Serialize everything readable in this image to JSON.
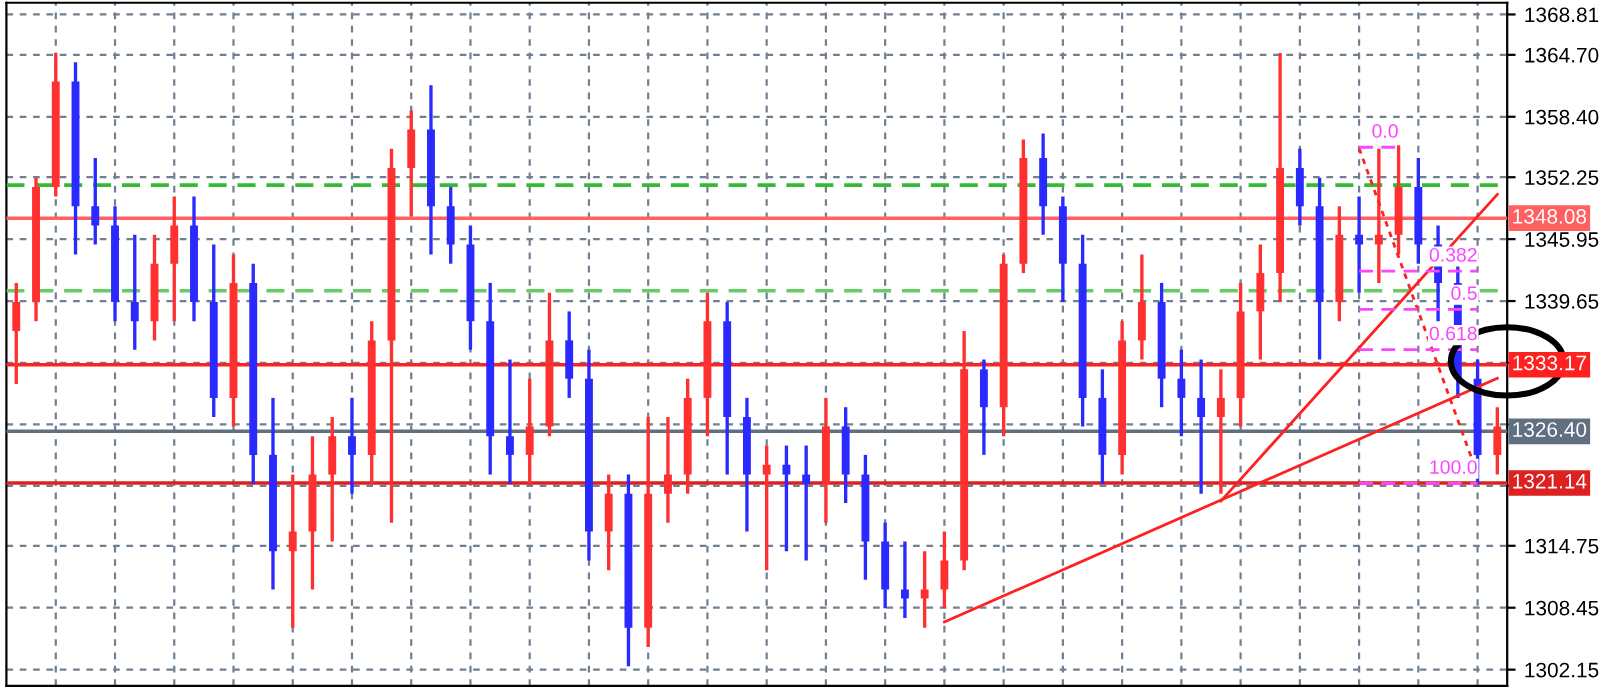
{
  "chart_data": {
    "type": "candlestick",
    "categories": [
      null,
      null,
      null,
      null,
      null,
      null,
      null,
      null,
      null,
      null,
      null,
      null,
      null,
      null,
      null,
      null,
      null,
      null,
      null,
      null,
      null,
      null,
      null,
      null,
      null,
      null,
      null,
      null,
      null,
      null,
      null,
      null,
      null,
      null,
      null,
      null,
      null,
      null,
      null,
      null,
      null,
      null,
      null,
      null,
      null,
      null,
      null,
      null,
      null,
      null,
      null,
      null,
      null,
      null,
      null,
      null,
      null,
      null,
      null,
      null,
      null,
      null,
      null,
      null,
      null,
      null,
      null,
      null,
      null,
      null,
      null,
      null,
      null,
      null,
      null,
      null
    ],
    "ohlc": [
      [
        1336.6,
        1341.5,
        1331.2,
        1339.55
      ],
      [
        1339.55,
        1352.2,
        1337.6,
        1351.25
      ],
      [
        1351.25,
        1364.9,
        1350.3,
        1362.0
      ],
      [
        1362.0,
        1363.95,
        1344.4,
        1349.3
      ],
      [
        1349.3,
        1354.2,
        1345.4,
        1347.35
      ],
      [
        1347.35,
        1349.3,
        1337.6,
        1339.55
      ],
      [
        1339.55,
        1346.4,
        1334.7,
        1337.6
      ],
      [
        1337.6,
        1346.4,
        1335.65,
        1343.45
      ],
      [
        1343.45,
        1350.3,
        1337.6,
        1347.35
      ],
      [
        1347.35,
        1350.3,
        1337.6,
        1339.55
      ],
      [
        1339.55,
        1345.4,
        1327.85,
        1329.8
      ],
      [
        1329.8,
        1344.4,
        1326.9,
        1341.5
      ],
      [
        1341.5,
        1343.45,
        1321.05,
        1324.0
      ],
      [
        1324.0,
        1329.8,
        1310.3,
        1314.2
      ],
      [
        1314.2,
        1322.0,
        1306.4,
        1316.2
      ],
      [
        1316.2,
        1325.9,
        1310.3,
        1322.0
      ],
      [
        1322.0,
        1327.85,
        1315.2,
        1325.9
      ],
      [
        1325.9,
        1329.8,
        1320.05,
        1324.0
      ],
      [
        1324.0,
        1337.6,
        1321.05,
        1335.65
      ],
      [
        1335.65,
        1355.15,
        1317.1,
        1353.2
      ],
      [
        1353.2,
        1359.05,
        1348.3,
        1357.1
      ],
      [
        1357.1,
        1361.6,
        1344.4,
        1349.3
      ],
      [
        1349.3,
        1351.25,
        1343.45,
        1345.4
      ],
      [
        1345.4,
        1347.35,
        1334.7,
        1337.6
      ],
      [
        1337.6,
        1341.5,
        1322.0,
        1325.9
      ],
      [
        1325.9,
        1333.7,
        1321.05,
        1324.0
      ],
      [
        1324.0,
        1331.75,
        1321.05,
        1326.9
      ],
      [
        1326.9,
        1340.5,
        1325.9,
        1335.65
      ],
      [
        1335.65,
        1338.6,
        1329.8,
        1331.75
      ],
      [
        1331.75,
        1334.7,
        1313.25,
        1316.2
      ],
      [
        1316.2,
        1322.0,
        1312.25,
        1320.05
      ],
      [
        1320.05,
        1322.0,
        1302.5,
        1306.4
      ],
      [
        1306.4,
        1327.85,
        1304.45,
        1320.05
      ],
      [
        1320.05,
        1327.85,
        1317.1,
        1322.0
      ],
      [
        1322.0,
        1331.75,
        1320.05,
        1329.8
      ],
      [
        1329.8,
        1340.5,
        1325.9,
        1337.6
      ],
      [
        1337.6,
        1339.55,
        1322.0,
        1327.85
      ],
      [
        1327.85,
        1329.8,
        1316.2,
        1322.0
      ],
      [
        1322.0,
        1324.95,
        1312.25,
        1323.0
      ],
      [
        1323.0,
        1324.95,
        1314.2,
        1322.0
      ],
      [
        1322.0,
        1324.95,
        1313.25,
        1321.05
      ],
      [
        1321.05,
        1329.8,
        1317.1,
        1326.9
      ],
      [
        1326.9,
        1328.85,
        1319.1,
        1322.0
      ],
      [
        1322.0,
        1324.0,
        1311.3,
        1315.2
      ],
      [
        1315.2,
        1317.1,
        1308.4,
        1310.3
      ],
      [
        1310.3,
        1315.2,
        1307.4,
        1309.4
      ],
      [
        1309.4,
        1314.2,
        1306.4,
        1310.3
      ],
      [
        1310.3,
        1316.2,
        1308.4,
        1313.25
      ],
      [
        1313.25,
        1336.6,
        1312.25,
        1332.7
      ],
      [
        1332.7,
        1333.7,
        1324.0,
        1328.85
      ],
      [
        1328.85,
        1344.4,
        1325.9,
        1343.45
      ],
      [
        1343.45,
        1356.1,
        1342.5,
        1354.2
      ],
      [
        1354.2,
        1356.7,
        1346.4,
        1349.3
      ],
      [
        1349.3,
        1350.3,
        1339.55,
        1343.45
      ],
      [
        1343.45,
        1346.4,
        1326.9,
        1329.8
      ],
      [
        1329.8,
        1332.7,
        1321.05,
        1324.0
      ],
      [
        1324.0,
        1337.6,
        1322.0,
        1335.65
      ],
      [
        1335.65,
        1344.4,
        1333.7,
        1339.55
      ],
      [
        1339.55,
        1341.5,
        1328.85,
        1331.75
      ],
      [
        1331.75,
        1334.7,
        1325.9,
        1329.8
      ],
      [
        1329.8,
        1333.7,
        1320.05,
        1327.85
      ],
      [
        1327.85,
        1332.7,
        1320.05,
        1329.8
      ],
      [
        1329.8,
        1341.5,
        1326.9,
        1338.6
      ],
      [
        1338.6,
        1345.4,
        1333.7,
        1342.5
      ],
      [
        1342.5,
        1364.9,
        1339.55,
        1353.2
      ],
      [
        1353.2,
        1355.15,
        1347.35,
        1349.3
      ],
      [
        1349.3,
        1352.2,
        1333.7,
        1339.55
      ],
      [
        1339.55,
        1349.3,
        1337.6,
        1346.4
      ],
      [
        1346.4,
        1350.3,
        1340.5,
        1345.4
      ],
      [
        1345.4,
        1355.15,
        1341.5,
        1346.4
      ],
      [
        1346.4,
        1355.5,
        1344.4,
        1351.25
      ],
      [
        1351.25,
        1354.2,
        1343.45,
        1345.4
      ],
      [
        1345.4,
        1347.35,
        1337.6,
        1341.5
      ],
      [
        1341.5,
        1343.45,
        1329.8,
        1331.75
      ],
      [
        1331.75,
        1333.7,
        1321.05,
        1324.0
      ],
      [
        1324.0,
        1328.85,
        1322.0,
        1326.9
      ]
    ],
    "colors": [
      "#ff3030",
      "#ff3030",
      "#ff3030",
      "#2a2aff",
      "#2a2aff",
      "#2a2aff",
      "#2a2aff",
      "#ff3030",
      "#ff3030",
      "#2a2aff",
      "#2a2aff",
      "#ff3030",
      "#2a2aff",
      "#2a2aff",
      "#ff3030",
      "#ff3030",
      "#ff3030",
      "#2a2aff",
      "#ff3030",
      "#ff3030",
      "#ff3030",
      "#2a2aff",
      "#2a2aff",
      "#2a2aff",
      "#2a2aff",
      "#2a2aff",
      "#ff3030",
      "#ff3030",
      "#2a2aff",
      "#2a2aff",
      "#ff3030",
      "#2a2aff",
      "#ff3030",
      "#ff3030",
      "#ff3030",
      "#ff3030",
      "#2a2aff",
      "#2a2aff",
      "#ff3030",
      "#2a2aff",
      "#2a2aff",
      "#ff3030",
      "#2a2aff",
      "#2a2aff",
      "#2a2aff",
      "#2a2aff",
      "#ff3030",
      "#ff3030",
      "#ff3030",
      "#2a2aff",
      "#ff3030",
      "#ff3030",
      "#2a2aff",
      "#2a2aff",
      "#2a2aff",
      "#2a2aff",
      "#ff3030",
      "#ff3030",
      "#2a2aff",
      "#2a2aff",
      "#2a2aff",
      "#ff3030",
      "#ff3030",
      "#ff3030",
      "#ff3030",
      "#2a2aff",
      "#2a2aff",
      "#ff3030",
      "#2a2aff",
      "#ff3030",
      "#ff3030",
      "#2a2aff",
      "#2a2aff",
      "#2a2aff",
      "#2a2aff",
      "#ff3030"
    ],
    "series": [
      {
        "type": "line",
        "color": "#ff2020",
        "line_style": "solid",
        "values": [
          null,
          null,
          null,
          null,
          null,
          null,
          null,
          null,
          null,
          null,
          null,
          null,
          null,
          null,
          null,
          null,
          null,
          null,
          null,
          null,
          null,
          null,
          null,
          null,
          null,
          null,
          null,
          null,
          null,
          null,
          null,
          null,
          null,
          null,
          null,
          null,
          null,
          null,
          null,
          null,
          null,
          null,
          null,
          null,
          null,
          null,
          null,
          1307.0,
          null,
          null,
          null,
          null,
          null,
          null,
          null,
          null,
          null,
          null,
          null,
          null,
          null,
          null,
          null,
          null,
          null,
          null,
          null,
          null,
          null,
          null,
          null,
          null,
          null,
          null,
          null,
          1331.8
        ]
      },
      {
        "type": "line",
        "color": "#ff2020",
        "line_style": "solid",
        "values": [
          null,
          null,
          null,
          null,
          null,
          null,
          null,
          null,
          null,
          null,
          null,
          null,
          null,
          null,
          null,
          null,
          null,
          null,
          null,
          null,
          null,
          null,
          null,
          null,
          null,
          null,
          null,
          null,
          null,
          null,
          null,
          null,
          null,
          null,
          null,
          null,
          null,
          null,
          null,
          null,
          null,
          null,
          null,
          null,
          null,
          null,
          null,
          null,
          null,
          null,
          null,
          null,
          null,
          null,
          null,
          null,
          null,
          null,
          null,
          null,
          null,
          1319.3,
          null,
          null,
          null,
          null,
          null,
          null,
          null,
          null,
          null,
          null,
          null,
          null,
          null,
          1350.5
        ]
      },
      {
        "type": "line",
        "color": "#ff2020",
        "line_style": "dotted",
        "values": [
          null,
          null,
          null,
          null,
          null,
          null,
          null,
          null,
          null,
          null,
          null,
          null,
          null,
          null,
          null,
          null,
          null,
          null,
          null,
          null,
          null,
          null,
          null,
          null,
          null,
          null,
          null,
          null,
          null,
          null,
          null,
          null,
          null,
          null,
          null,
          null,
          null,
          null,
          null,
          null,
          null,
          null,
          null,
          null,
          null,
          null,
          null,
          null,
          null,
          null,
          null,
          null,
          null,
          null,
          null,
          null,
          null,
          null,
          null,
          null,
          null,
          null,
          null,
          null,
          null,
          null,
          null,
          null,
          1355.2,
          null,
          null,
          null,
          null,
          null,
          1322.0,
          null
        ]
      },
      {
        "type": "line",
        "color": "#ff44ff",
        "line_style": "dashed",
        "values": [
          null,
          null,
          null,
          null,
          null,
          null,
          null,
          null,
          null,
          null,
          null,
          null,
          null,
          null,
          null,
          null,
          null,
          null,
          null,
          null,
          null,
          null,
          null,
          null,
          null,
          null,
          null,
          null,
          null,
          null,
          null,
          null,
          null,
          null,
          null,
          null,
          null,
          null,
          null,
          null,
          null,
          null,
          null,
          null,
          null,
          null,
          null,
          null,
          null,
          null,
          null,
          null,
          null,
          null,
          null,
          null,
          null,
          null,
          null,
          null,
          null,
          null,
          null,
          null,
          null,
          null,
          null,
          null,
          1355.3,
          null,
          1355.3,
          null,
          null,
          null,
          null,
          null
        ]
      },
      {
        "type": "line",
        "color": "#ff44ff",
        "line_style": "dashed",
        "values": [
          null,
          null,
          null,
          null,
          null,
          null,
          null,
          null,
          null,
          null,
          null,
          null,
          null,
          null,
          null,
          null,
          null,
          null,
          null,
          null,
          null,
          null,
          null,
          null,
          null,
          null,
          null,
          null,
          null,
          null,
          null,
          null,
          null,
          null,
          null,
          null,
          null,
          null,
          null,
          null,
          null,
          null,
          null,
          null,
          null,
          null,
          null,
          null,
          null,
          null,
          null,
          null,
          null,
          null,
          null,
          null,
          null,
          null,
          null,
          null,
          null,
          null,
          null,
          null,
          null,
          null,
          null,
          null,
          1342.7,
          null,
          null,
          null,
          null,
          null,
          1342.7,
          null
        ]
      },
      {
        "type": "line",
        "color": "#ff44ff",
        "line_style": "dashed",
        "values": [
          null,
          null,
          null,
          null,
          null,
          null,
          null,
          null,
          null,
          null,
          null,
          null,
          null,
          null,
          null,
          null,
          null,
          null,
          null,
          null,
          null,
          null,
          null,
          null,
          null,
          null,
          null,
          null,
          null,
          null,
          null,
          null,
          null,
          null,
          null,
          null,
          null,
          null,
          null,
          null,
          null,
          null,
          null,
          null,
          null,
          null,
          null,
          null,
          null,
          null,
          null,
          null,
          null,
          null,
          null,
          null,
          null,
          null,
          null,
          null,
          null,
          null,
          null,
          null,
          null,
          null,
          null,
          null,
          1338.8,
          null,
          null,
          null,
          null,
          null,
          1338.8,
          null
        ]
      },
      {
        "type": "line",
        "color": "#ff44ff",
        "line_style": "dashed",
        "values": [
          null,
          null,
          null,
          null,
          null,
          null,
          null,
          null,
          null,
          null,
          null,
          null,
          null,
          null,
          null,
          null,
          null,
          null,
          null,
          null,
          null,
          null,
          null,
          null,
          null,
          null,
          null,
          null,
          null,
          null,
          null,
          null,
          null,
          null,
          null,
          null,
          null,
          null,
          null,
          null,
          null,
          null,
          null,
          null,
          null,
          null,
          null,
          null,
          null,
          null,
          null,
          null,
          null,
          null,
          null,
          null,
          null,
          null,
          null,
          null,
          null,
          null,
          null,
          null,
          null,
          null,
          null,
          null,
          1334.7,
          null,
          null,
          null,
          null,
          null,
          1334.7,
          null
        ]
      },
      {
        "type": "line",
        "color": "#ff44ff",
        "line_style": "dashed",
        "values": [
          null,
          null,
          null,
          null,
          null,
          null,
          null,
          null,
          null,
          null,
          null,
          null,
          null,
          null,
          null,
          null,
          null,
          null,
          null,
          null,
          null,
          null,
          null,
          null,
          null,
          null,
          null,
          null,
          null,
          null,
          null,
          null,
          null,
          null,
          null,
          null,
          null,
          null,
          null,
          null,
          null,
          null,
          null,
          null,
          null,
          null,
          null,
          null,
          null,
          null,
          null,
          null,
          null,
          null,
          null,
          null,
          null,
          null,
          null,
          null,
          null,
          null,
          null,
          null,
          null,
          null,
          null,
          null,
          1321.1,
          null,
          null,
          null,
          null,
          null,
          1321.1,
          null
        ]
      }
    ],
    "annotations": [
      "0.0",
      "0.382",
      "0.5",
      "0.618",
      "100.0"
    ],
    "ref_lines": [
      {
        "axis": "y",
        "value": 1351.45,
        "label": null,
        "color": "#33bb33",
        "line_style": "dashed"
      },
      {
        "axis": "y",
        "value": 1340.7,
        "label": null,
        "color": "#66cc66",
        "line_style": "dashed"
      },
      {
        "axis": "y",
        "value": 1348.08,
        "label": "1348.08",
        "color": "#ff6060",
        "line_style": "solid"
      },
      {
        "axis": "y",
        "value": 1333.17,
        "label": "1333.17",
        "color": "#ff2020",
        "line_style": "solid"
      },
      {
        "axis": "y",
        "value": 1326.4,
        "label": "1326.40",
        "color": "#607080",
        "line_style": "solid"
      },
      {
        "axis": "y",
        "value": 1321.14,
        "label": "1321.14",
        "color": "#dd2020",
        "line_style": "solid"
      }
    ],
    "ylim": [
      1300.5,
      1370.0
    ],
    "yticks": [
      {
        "value": 1302.15,
        "label": "1302.15"
      },
      {
        "value": 1308.45,
        "label": "1308.45"
      },
      {
        "value": 1314.75,
        "label": "1314.75"
      },
      {
        "value": 1320.85,
        "label": null
      },
      {
        "value": 1327.1,
        "label": null
      },
      {
        "value": 1333.35,
        "label": null
      },
      {
        "value": 1339.65,
        "label": "1339.65"
      },
      {
        "value": 1345.95,
        "label": "1345.95"
      },
      {
        "value": 1352.25,
        "label": "1352.25"
      },
      {
        "value": 1358.4,
        "label": "1358.40"
      },
      {
        "value": 1364.7,
        "label": "1364.70"
      },
      {
        "value": 1368.81,
        "label": "1368.81"
      }
    ],
    "tick_labels": "y",
    "grid": true
  }
}
